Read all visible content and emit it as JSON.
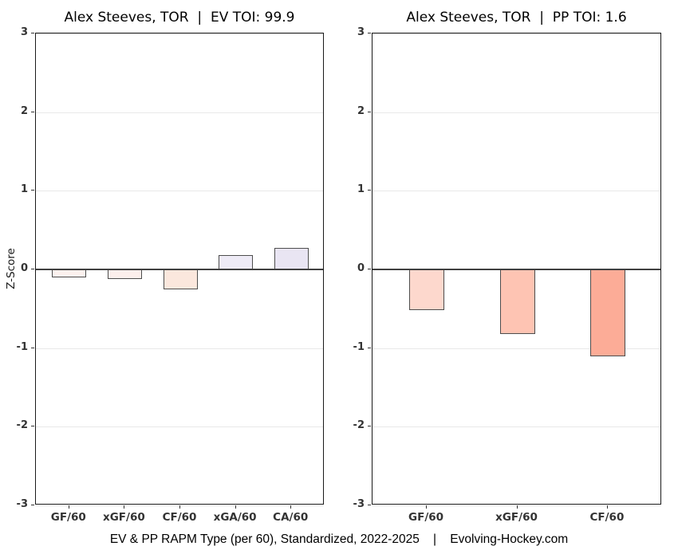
{
  "page": {
    "background": "#ffffff"
  },
  "caption": {
    "text": "EV & PP RAPM Type (per 60), Standardized, 2022-2025    |    Evolving-Hockey.com"
  },
  "chart_data": [
    {
      "type": "bar",
      "title": "Alex Steeves, TOR  |  EV TOI: 99.9",
      "categories": [
        "GF/60",
        "xGF/60",
        "CF/60",
        "xGA/60",
        "CA/60"
      ],
      "values": [
        -0.1,
        -0.12,
        -0.25,
        0.18,
        0.27
      ],
      "bar_colors": [
        "#fcf1ee",
        "#fcefec",
        "#fbe7dd",
        "#eeebf6",
        "#e9e5f3"
      ],
      "title_label": "EV TOI",
      "toi_value": "99.9",
      "ylabel": "Z-Score",
      "xlabel": "",
      "ylim": [
        -3,
        3
      ],
      "yticks": [
        3,
        2,
        1,
        0,
        -1,
        -2,
        -3
      ],
      "grid": true,
      "legend": "none",
      "zero_line": true
    },
    {
      "type": "bar",
      "title": "Alex Steeves, TOR  |  PP TOI: 1.6",
      "categories": [
        "GF/60",
        "xGF/60",
        "CF/60"
      ],
      "values": [
        -0.52,
        -0.82,
        -1.1
      ],
      "bar_colors": [
        "#fdd8cd",
        "#fec4b3",
        "#fcac97"
      ],
      "title_label": "PP TOI",
      "toi_value": "1.6",
      "ylabel": "",
      "xlabel": "",
      "ylim": [
        -3,
        3
      ],
      "yticks": [
        3,
        2,
        1,
        0,
        -1,
        -2,
        -3
      ],
      "grid": true,
      "legend": "none",
      "zero_line": true
    }
  ],
  "style": {
    "bar_border_color": "#4d4d4d",
    "grid_color": "#e9e9e9",
    "zero_line_color": "#404040",
    "panel_border_color": "#1a1a1a",
    "tick_label_color": "#333333"
  }
}
